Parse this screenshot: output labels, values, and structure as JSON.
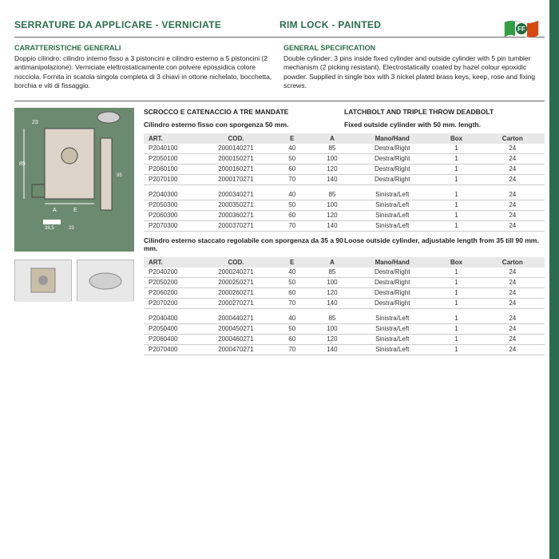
{
  "header": {
    "title_it": "SERRATURE DA APPLICARE - VERNICIATE",
    "title_en": "RIM LOCK - PAINTED"
  },
  "spec": {
    "title_it": "CARATTERISTICHE GENERALI",
    "title_en": "GENERAL SPECIFICATION",
    "body_it": "Doppio cilindro: cilindro interno fisso a 3 pistoncini e cilindro esterno a 5 pistoncini (2 antimanipolazione). Verniciate elettrostaticamente con polvere epossidica colore nocciola. Fornita in scatola singola completa di 3 chiavi in ottone nichelato, bocchetta, borchia e viti di fissaggio.",
    "body_en": "Double cylinder: 3 pins inside fixed cylinder and outside cylinder with 5 pin tumbler mechanism (2 picking resistant). Electrostatically coated by hazel colour epoxidic powder. Supplied in single box with 3 nickel plated brass keys, keep, rose and fixing screws."
  },
  "section1": {
    "head_it": "SCROCCO E CATENACCIO A TRE MANDATE",
    "head_en": "LATCHBOLT AND TRIPLE THROW DEADBOLT",
    "desc_it": "Cilindro esterno fisso con sporgenza 50 mm.",
    "desc_en": "Fixed outside cylinder with 50 mm. length."
  },
  "section2": {
    "desc_it": "Cilindro esterno staccato regolabile con sporgenza da 35 a 90 mm.",
    "desc_en": "Loose outside cylinder, adjustable length from 35 till 90 mm."
  },
  "table": {
    "columns": [
      "ART.",
      "COD.",
      "E",
      "A",
      "Mano/Hand",
      "Box",
      "Carton"
    ],
    "col_widths": [
      "14%",
      "18%",
      "10%",
      "10%",
      "20%",
      "12%",
      "16%"
    ]
  },
  "t1a": [
    [
      "P2040100",
      "2000140271",
      "40",
      "85",
      "Destra/Right",
      "1",
      "24"
    ],
    [
      "P2050100",
      "2000150271",
      "50",
      "100",
      "Destra/Right",
      "1",
      "24"
    ],
    [
      "P2060100",
      "2000160271",
      "60",
      "120",
      "Destra/Right",
      "1",
      "24"
    ],
    [
      "P2070100",
      "2000170271",
      "70",
      "140",
      "Destra/Right",
      "1",
      "24"
    ]
  ],
  "t1b": [
    [
      "P2040300",
      "2000340271",
      "40",
      "85",
      "Sinistra/Left",
      "1",
      "24"
    ],
    [
      "P2050300",
      "2000350271",
      "50",
      "100",
      "Sinistra/Left",
      "1",
      "24"
    ],
    [
      "P2060300",
      "2000360271",
      "60",
      "120",
      "Sinistra/Left",
      "1",
      "24"
    ],
    [
      "P2070300",
      "2000370271",
      "70",
      "140",
      "Sinistra/Left",
      "1",
      "24"
    ]
  ],
  "t2a": [
    [
      "P2040200",
      "2000240271",
      "40",
      "85",
      "Destra/Right",
      "1",
      "24"
    ],
    [
      "P2050200",
      "2000250271",
      "50",
      "100",
      "Destra/Right",
      "1",
      "24"
    ],
    [
      "P2060200",
      "2000260271",
      "60",
      "120",
      "Destra/Right",
      "1",
      "24"
    ],
    [
      "P2070200",
      "2000270271",
      "70",
      "140",
      "Destra/Right",
      "1",
      "24"
    ]
  ],
  "t2b": [
    [
      "P2040400",
      "2000440271",
      "40",
      "85",
      "Sinistra/Left",
      "1",
      "24"
    ],
    [
      "P2050400",
      "2000450271",
      "50",
      "100",
      "Sinistra/Left",
      "1",
      "24"
    ],
    [
      "P2060400",
      "2000460271",
      "60",
      "120",
      "Sinistra/Left",
      "1",
      "24"
    ],
    [
      "P2070400",
      "2000470271",
      "70",
      "140",
      "Sinistra/Left",
      "1",
      "24"
    ]
  ],
  "colors": {
    "brand": "#2b6b4f",
    "image_bg": "#6c8a6f",
    "th_bg": "#e8e8e8",
    "border": "#ccc"
  }
}
